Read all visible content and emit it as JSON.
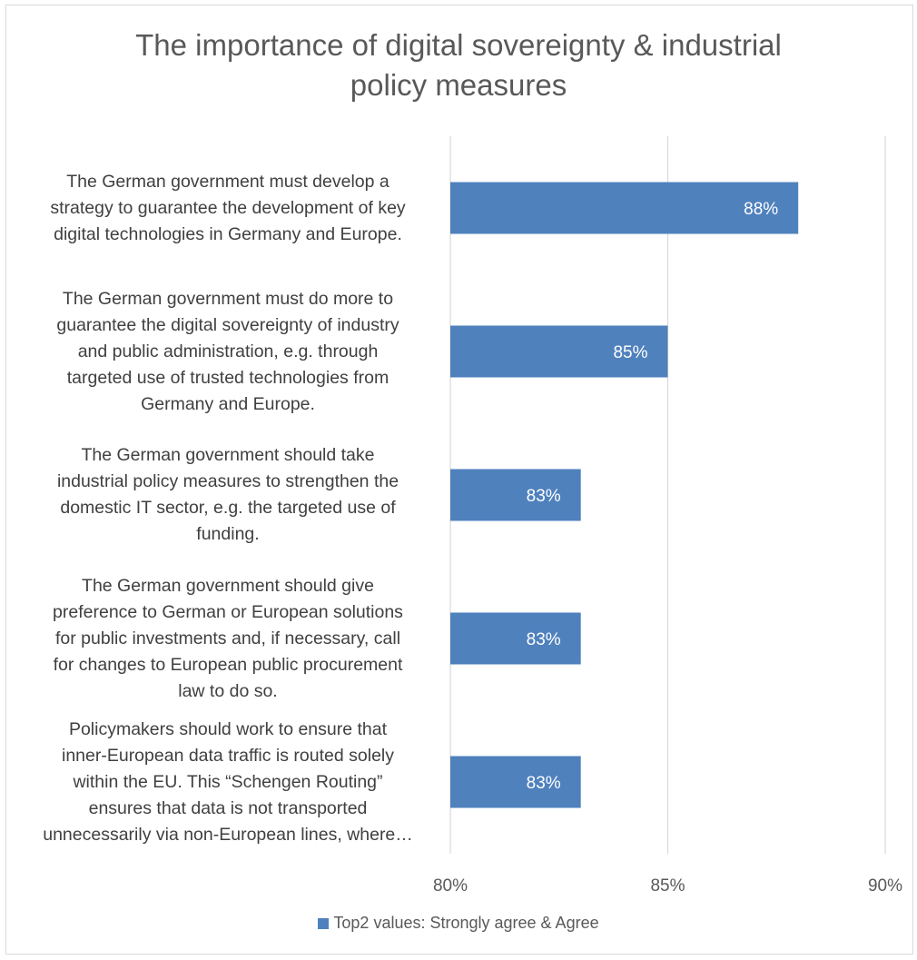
{
  "chart_data": {
    "type": "bar",
    "orientation": "horizontal",
    "title": "The importance of digital sovereignty & industrial policy measures",
    "title_lines": [
      "The importance of digital sovereignty & industrial",
      "policy measures"
    ],
    "categories": [
      "The German government must develop a strategy to guarantee the development of key digital technologies in Germany and Europe.",
      "The German government must do more to guarantee the digital sovereignty of industry and public administration, e.g. through targeted use of trusted technologies from Germany and Europe.",
      "The German government should take industrial policy measures to strengthen the domestic IT sector, e.g. the targeted use of funding.",
      "The German government should give preference to German or European solutions for public investments and, if necessary, call for changes to European public procurement law to do so.",
      "Policymakers should work to ensure that inner-European data traffic is routed solely within the EU. This “Schengen Routing” ensures that data is not transported unnecessarily via non-European lines, where…"
    ],
    "category_lines": [
      [
        "The German government must develop a",
        "strategy to guarantee the development of key",
        "digital technologies in Germany and Europe."
      ],
      [
        "The German government must do more to",
        "guarantee the digital sovereignty of industry",
        "and public administration, e.g. through",
        "targeted use of trusted technologies from",
        "Germany and Europe."
      ],
      [
        "The German government should take",
        "industrial policy measures to strengthen the",
        "domestic IT sector, e.g. the targeted use of",
        "funding."
      ],
      [
        "The German government should give",
        "preference to German or European solutions",
        "for public investments and, if necessary, call",
        "for changes to European public procurement",
        "law to do so."
      ],
      [
        "Policymakers should work to ensure that",
        "inner-European data traffic is routed solely",
        "within the EU. This “Schengen Routing”",
        "ensures that data is not transported",
        "unnecessarily via non-European lines, where…"
      ]
    ],
    "series": [
      {
        "name": "Top2 values: Strongly agree & Agree",
        "values": [
          88,
          85,
          83,
          83,
          83
        ]
      }
    ],
    "data_labels": [
      "88%",
      "85%",
      "83%",
      "83%",
      "83%"
    ],
    "xlim": [
      80,
      90
    ],
    "xticks": [
      80,
      85,
      90
    ],
    "xtick_labels": [
      "80%",
      "85%",
      "90%"
    ],
    "grid": true,
    "legend_position": "bottom",
    "bar_color": "#4f81bd",
    "grid_color": "#d9d9d9",
    "label_color": "#ffffff"
  }
}
